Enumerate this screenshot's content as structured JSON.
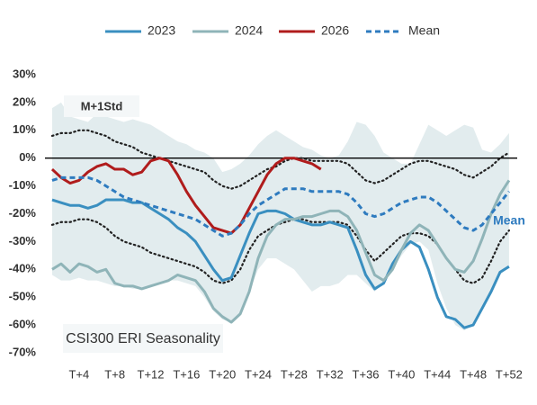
{
  "chart_data": {
    "type": "line",
    "title": "CSI300 ERI Seasonality",
    "annotations": [
      "M+1Std",
      "Mean"
    ],
    "categories": [
      null,
      null,
      null,
      "T+4",
      null,
      null,
      null,
      "T+8",
      null,
      null,
      null,
      "T+12",
      null,
      null,
      null,
      "T+16",
      null,
      null,
      null,
      "T+20",
      null,
      null,
      null,
      "T+24",
      null,
      null,
      null,
      "T+28",
      null,
      null,
      null,
      "T+32",
      null,
      null,
      null,
      "T+36",
      null,
      null,
      null,
      "T+40",
      null,
      null,
      null,
      "T+44",
      null,
      null,
      null,
      "T+48",
      null,
      null,
      null,
      "T+52"
    ],
    "series": [
      {
        "name": "2023",
        "color": "#3a8fc0",
        "dash": false,
        "values": [
          -15,
          -16,
          -17,
          -17,
          -18,
          -17,
          -15,
          -15,
          -15,
          -16,
          -16,
          -18,
          -20,
          -22,
          -25,
          -27,
          -30,
          -35,
          -40,
          -44,
          -43,
          -35,
          -27,
          -20,
          -19,
          -19,
          -20,
          -22,
          -23,
          -24,
          -24,
          -23,
          -24,
          -25,
          -33,
          -42,
          -47,
          -45,
          -38,
          -33,
          -30,
          -32,
          -40,
          -50,
          -57,
          -58,
          -61,
          -60,
          -54,
          -48,
          -41,
          -39
        ]
      },
      {
        "name": "2024",
        "color": "#8fb4b8",
        "dash": false,
        "values": [
          -40,
          -38,
          -41,
          -38,
          -39,
          -41,
          -40,
          -45,
          -46,
          -46,
          -47,
          -46,
          -45,
          -44,
          -42,
          -43,
          -44,
          -48,
          -54,
          -57,
          -59,
          -56,
          -48,
          -36,
          -28,
          -24,
          -22,
          -22,
          -21,
          -21,
          -20,
          -19,
          -19,
          -21,
          -26,
          -34,
          -42,
          -44,
          -40,
          -33,
          -27,
          -24,
          -26,
          -31,
          -36,
          -40,
          -41,
          -37,
          -29,
          -20,
          -13,
          -8
        ]
      },
      {
        "name": "2026",
        "color": "#b01c1c",
        "dash": false,
        "values": [
          -4,
          -7,
          -9,
          -8,
          -5,
          -3,
          -2,
          -4,
          -4,
          -6,
          -5,
          -1,
          0,
          -1,
          -6,
          -12,
          -17,
          -21,
          -25,
          -26,
          -27,
          -24,
          -18,
          -12,
          -6,
          -2,
          0,
          0,
          -1,
          -2,
          -4,
          null,
          null,
          null,
          null,
          null,
          null,
          null,
          null,
          null,
          null,
          null,
          null,
          null,
          null,
          null,
          null,
          null,
          null,
          null,
          null,
          null
        ]
      },
      {
        "name": "Mean",
        "color": "#2e7bbf",
        "dash": true,
        "values": [
          -8,
          -7,
          -7,
          -7,
          -7,
          -8,
          -10,
          -12,
          -14,
          -15,
          -16,
          -17,
          -18,
          -19,
          -20,
          -21,
          -22,
          -24,
          -26,
          -28,
          -27,
          -24,
          -20,
          -17,
          -15,
          -13,
          -11,
          -11,
          -11,
          -12,
          -12,
          -12,
          -12,
          -13,
          -16,
          -20,
          -21,
          -20,
          -18,
          -16,
          -15,
          -14,
          -14,
          -16,
          -19,
          -22,
          -25,
          -26,
          -24,
          -20,
          -16,
          -12
        ]
      }
    ],
    "std_lines": {
      "color": "#222222",
      "upper": [
        8,
        9,
        9,
        10,
        10,
        9,
        8,
        6,
        5,
        4,
        2,
        1,
        0,
        -1,
        -2,
        -3,
        -4,
        -5,
        -8,
        -10,
        -11,
        -10,
        -8,
        -6,
        -4,
        -3,
        -1,
        0,
        0,
        -1,
        -1,
        -1,
        -1,
        -2,
        -5,
        -8,
        -9,
        -8,
        -6,
        -4,
        -2,
        -1,
        -1,
        -2,
        -3,
        -4,
        -6,
        -7,
        -5,
        -3,
        0,
        2
      ],
      "lower": [
        -24,
        -23,
        -23,
        -22,
        -22,
        -23,
        -25,
        -28,
        -30,
        -31,
        -32,
        -34,
        -35,
        -36,
        -37,
        -38,
        -39,
        -41,
        -44,
        -45,
        -44,
        -40,
        -33,
        -28,
        -26,
        -24,
        -23,
        -22,
        -22,
        -23,
        -23,
        -23,
        -23,
        -24,
        -28,
        -33,
        -37,
        -34,
        -31,
        -28,
        -27,
        -27,
        -28,
        -31,
        -36,
        -40,
        -44,
        -45,
        -43,
        -37,
        -30,
        -26
      ]
    },
    "range_band": {
      "color": "#e2ecee",
      "upper": [
        18,
        20,
        15,
        14,
        13,
        16,
        15,
        14,
        13,
        14,
        13,
        12,
        10,
        8,
        6,
        5,
        3,
        2,
        0,
        -5,
        -4,
        -2,
        1,
        5,
        8,
        10,
        8,
        6,
        4,
        3,
        1,
        0,
        1,
        6,
        13,
        12,
        8,
        2,
        0,
        -2,
        -2,
        5,
        12,
        10,
        8,
        10,
        12,
        11,
        3,
        2,
        5,
        9
      ],
      "lower": [
        -42,
        -44,
        -44,
        -43,
        -44,
        -44,
        -45,
        -46,
        -46,
        -47,
        -47,
        -46,
        -45,
        -44,
        -44,
        -45,
        -46,
        -50,
        -55,
        -58,
        -59,
        -56,
        -48,
        -40,
        -36,
        -36,
        -38,
        -40,
        -44,
        -48,
        -46,
        -46,
        -45,
        -42,
        -42,
        -45,
        -48,
        -45,
        -40,
        -35,
        -31,
        -30,
        -33,
        -45,
        -54,
        -60,
        -62,
        -60,
        -55,
        -48,
        -42,
        -39
      ]
    },
    "ylim": [
      -70,
      30
    ],
    "yticks": [
      {
        "value": -70,
        "label": "-70%"
      },
      {
        "value": -60,
        "label": "-60%"
      },
      {
        "value": -50,
        "label": "-50%"
      },
      {
        "value": -40,
        "label": "-40%"
      },
      {
        "value": -30,
        "label": "-30%"
      },
      {
        "value": -20,
        "label": "-20%"
      },
      {
        "value": -10,
        "label": "-10%"
      },
      {
        "value": 0,
        "label": "0%"
      },
      {
        "value": 10,
        "label": "10%"
      },
      {
        "value": 20,
        "label": "20%"
      },
      {
        "value": 30,
        "label": "30%"
      }
    ],
    "zero_line": true
  }
}
